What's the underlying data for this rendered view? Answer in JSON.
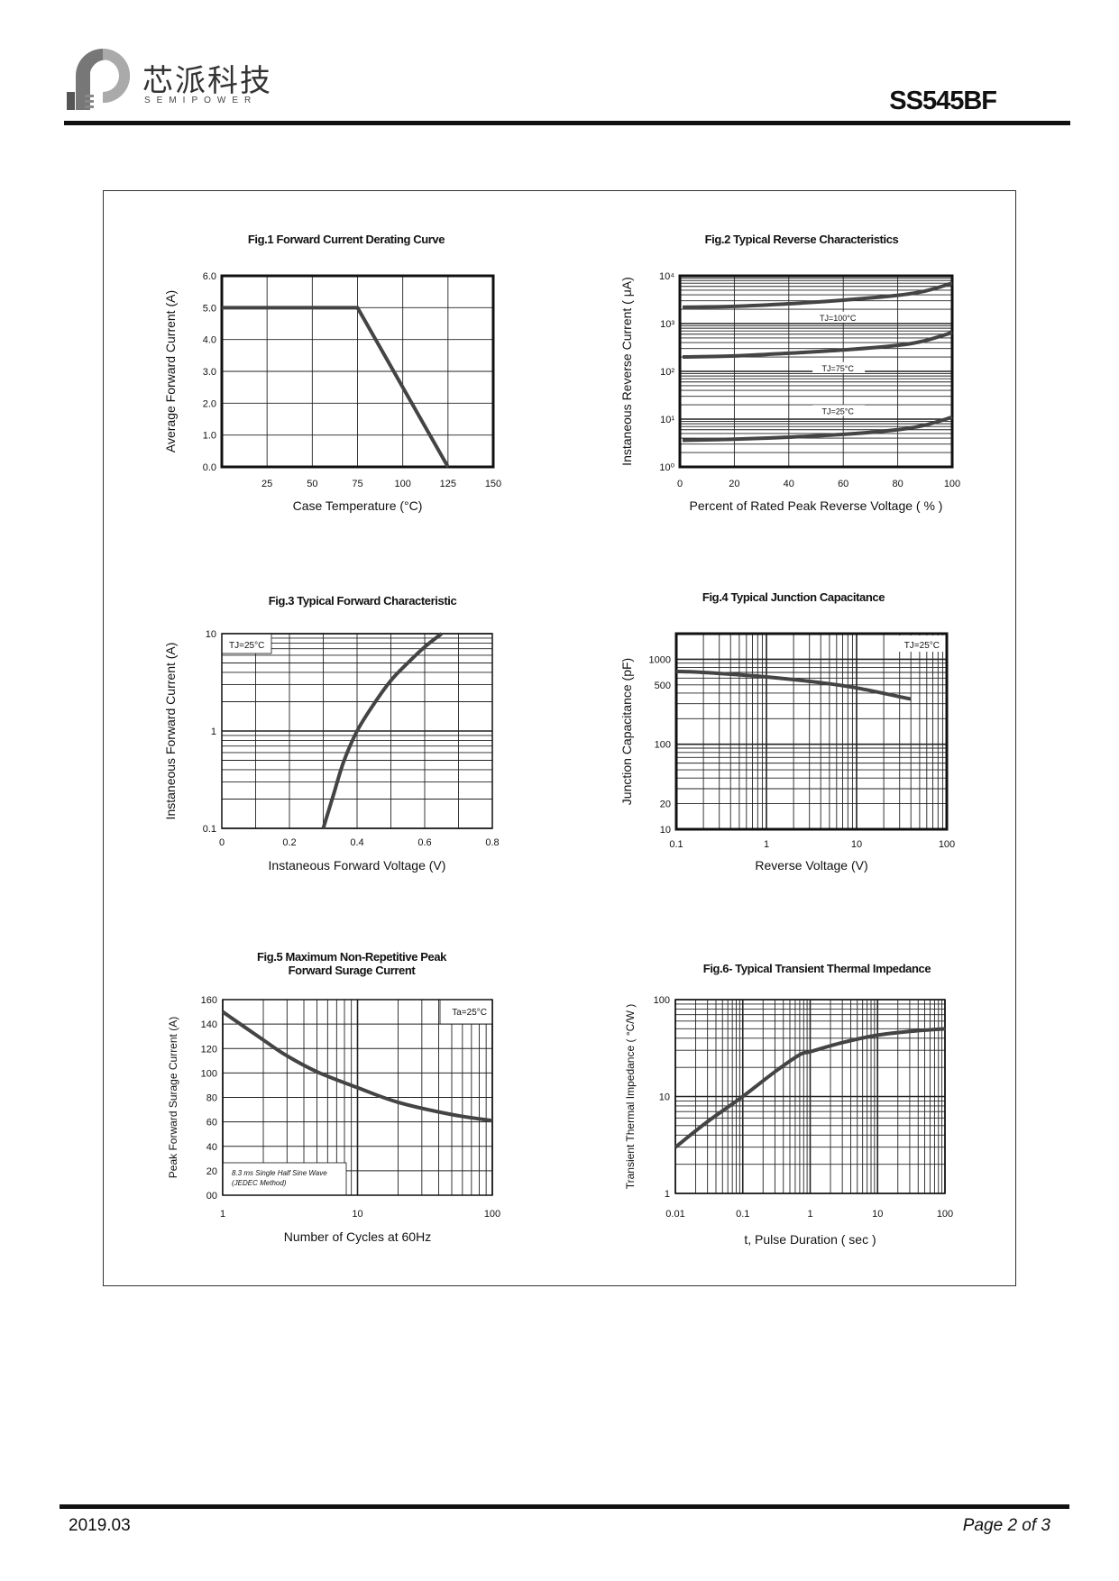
{
  "header": {
    "logo_cn": "芯派科技",
    "logo_en": "SEMIPOWER",
    "part_number": "SS545BF"
  },
  "footer": {
    "date": "2019.03",
    "page": "Page 2 of 3"
  },
  "colors": {
    "curve": "#444444",
    "grid": "#222222",
    "rule": "#111111"
  },
  "chart_data": [
    {
      "type": "line",
      "title": "Fig.1  Forward Current Derating Curve",
      "xlabel": "Case Temperature (°C)",
      "ylabel": "Average Forward Current (A)",
      "xscale": "linear",
      "yscale": "linear",
      "xlim": [
        0,
        150
      ],
      "ylim": [
        0,
        6
      ],
      "xticks": [
        {
          "v": 25,
          "label": "25"
        },
        {
          "v": 50,
          "label": "50"
        },
        {
          "v": 75,
          "label": "75"
        },
        {
          "v": 100,
          "label": "100"
        },
        {
          "v": 125,
          "label": "125"
        },
        {
          "v": 150,
          "label": "150"
        }
      ],
      "yticks": [
        {
          "v": 0,
          "label": "0.0"
        },
        {
          "v": 1,
          "label": "1.0"
        },
        {
          "v": 2,
          "label": "2.0"
        },
        {
          "v": 3,
          "label": "3.0"
        },
        {
          "v": 4,
          "label": "4.0"
        },
        {
          "v": 5,
          "label": "5.0"
        },
        {
          "v": 6,
          "label": "6.0"
        }
      ],
      "grid": true,
      "series": [
        {
          "points": [
            [
              0,
              5
            ],
            [
              75,
              5
            ],
            [
              125,
              0
            ]
          ]
        }
      ],
      "annotations": []
    },
    {
      "type": "line",
      "title": "Fig.2  Typical Reverse Characteristics",
      "xlabel": "Percent of Rated Peak Reverse Voltage ( % )",
      "ylabel": "Instaneous Reverse Current ( μA)",
      "xscale": "linear",
      "yscale": "log",
      "xlim": [
        0,
        100
      ],
      "ylim": [
        1,
        10000
      ],
      "xticks": [
        {
          "v": 0,
          "label": "0"
        },
        {
          "v": 20,
          "label": "20"
        },
        {
          "v": 40,
          "label": "40"
        },
        {
          "v": 60,
          "label": "60"
        },
        {
          "v": 80,
          "label": "80"
        },
        {
          "v": 100,
          "label": "100"
        }
      ],
      "yticks": [
        {
          "v": 1,
          "label": "10⁰"
        },
        {
          "v": 10,
          "label": "10¹"
        },
        {
          "v": 100,
          "label": "10²"
        },
        {
          "v": 1000,
          "label": "10³"
        },
        {
          "v": 10000,
          "label": "10⁴"
        }
      ],
      "grid": true,
      "series": [
        {
          "points": [
            [
              1,
              2200
            ],
            [
              20,
              2300
            ],
            [
              40,
              2600
            ],
            [
              60,
              3100
            ],
            [
              80,
              3900
            ],
            [
              90,
              4800
            ],
            [
              100,
              7000
            ]
          ]
        },
        {
          "points": [
            [
              1,
              200
            ],
            [
              20,
              210
            ],
            [
              40,
              240
            ],
            [
              60,
              280
            ],
            [
              80,
              350
            ],
            [
              90,
              440
            ],
            [
              100,
              650
            ]
          ]
        },
        {
          "points": [
            [
              1,
              3.6
            ],
            [
              20,
              3.8
            ],
            [
              40,
              4.2
            ],
            [
              60,
              4.8
            ],
            [
              80,
              6
            ],
            [
              90,
              7.5
            ],
            [
              100,
              11
            ]
          ]
        }
      ],
      "annotations": [
        "TJ=100°C",
        "TJ=75°C",
        "TJ=25°C"
      ]
    },
    {
      "type": "line",
      "title": "Fig.3  Typical Forward Characteristic",
      "xlabel": "Instaneous Forward Voltage (V)",
      "ylabel": "Instaneous Forward Current  (A)",
      "xscale": "linear",
      "yscale": "log",
      "xlim": [
        0,
        0.8
      ],
      "ylim": [
        0.1,
        10
      ],
      "xticks": [
        {
          "v": 0,
          "label": "0"
        },
        {
          "v": 0.2,
          "label": "0.2"
        },
        {
          "v": 0.4,
          "label": "0.4"
        },
        {
          "v": 0.6,
          "label": "0.6"
        },
        {
          "v": 0.8,
          "label": "0.8"
        }
      ],
      "yticks": [
        {
          "v": 0.1,
          "label": "0.1"
        },
        {
          "v": 1,
          "label": "1"
        },
        {
          "v": 10,
          "label": "10"
        }
      ],
      "grid": true,
      "series": [
        {
          "points": [
            [
              0.3,
              0.1
            ],
            [
              0.33,
              0.22
            ],
            [
              0.36,
              0.48
            ],
            [
              0.4,
              1.0
            ],
            [
              0.45,
              1.9
            ],
            [
              0.5,
              3.3
            ],
            [
              0.55,
              5.0
            ],
            [
              0.6,
              7.3
            ],
            [
              0.65,
              10
            ]
          ]
        }
      ],
      "annotations": [
        "TJ=25°C"
      ]
    },
    {
      "type": "line",
      "title": "Fig.4  Typical Junction Capacitance",
      "xlabel": "Reverse  Voltage (V)",
      "ylabel": "Junction Capacitance (pF)",
      "xscale": "log",
      "yscale": "log",
      "xlim": [
        0.1,
        100
      ],
      "ylim": [
        10,
        2000
      ],
      "xticks": [
        {
          "v": 0.1,
          "label": "0.1"
        },
        {
          "v": 1,
          "label": "1"
        },
        {
          "v": 10,
          "label": "10"
        },
        {
          "v": 100,
          "label": "100"
        }
      ],
      "yticks": [
        {
          "v": 10,
          "label": "10"
        },
        {
          "v": 20,
          "label": "20"
        },
        {
          "v": 100,
          "label": "100"
        },
        {
          "v": 500,
          "label": "500"
        },
        {
          "v": 1000,
          "label": "1000"
        }
      ],
      "grid": true,
      "series": [
        {
          "points": [
            [
              0.1,
              720
            ],
            [
              0.2,
              700
            ],
            [
              1,
              620
            ],
            [
              4,
              530
            ],
            [
              10,
              460
            ],
            [
              40,
              340
            ]
          ]
        }
      ],
      "annotations": [
        "TJ=25°C"
      ]
    },
    {
      "type": "line",
      "title": "Fig.5  Maximum Non-Repetitive Peak",
      "title2": "Forward Surage Current",
      "xlabel": "Number of Cycles at 60Hz",
      "ylabel": "Peak Forward Surage Current (A)",
      "xscale": "log",
      "yscale": "linear",
      "xlim": [
        1,
        100
      ],
      "ylim": [
        0,
        160
      ],
      "xticks": [
        {
          "v": 1,
          "label": "1"
        },
        {
          "v": 10,
          "label": "10"
        },
        {
          "v": 100,
          "label": "100"
        }
      ],
      "yticks": [
        {
          "v": 0,
          "label": "00"
        },
        {
          "v": 20,
          "label": "20"
        },
        {
          "v": 40,
          "label": "40"
        },
        {
          "v": 60,
          "label": "60"
        },
        {
          "v": 80,
          "label": "80"
        },
        {
          "v": 100,
          "label": "100"
        },
        {
          "v": 120,
          "label": "120"
        },
        {
          "v": 140,
          "label": "140"
        },
        {
          "v": 160,
          "label": "160"
        }
      ],
      "grid": true,
      "series": [
        {
          "points": [
            [
              1,
              150
            ],
            [
              2,
              127
            ],
            [
              3,
              114
            ],
            [
              5,
              101
            ],
            [
              10,
              88
            ],
            [
              20,
              76
            ],
            [
              50,
              66
            ],
            [
              100,
              61
            ]
          ]
        }
      ],
      "annotations": [
        "Ta=25°C",
        "8.3 ms Single Half Sine Wave",
        "(JEDEC Method)"
      ]
    },
    {
      "type": "line",
      "title": "Fig.6- Typical Transient Thermal Impedance",
      "xlabel": "t, Pulse Duration ( sec )",
      "ylabel": "Transient Thermal Impedance ( °C/W )",
      "xscale": "log",
      "yscale": "log",
      "xlim": [
        0.01,
        100
      ],
      "ylim": [
        1,
        100
      ],
      "xticks": [
        {
          "v": 0.01,
          "label": "0.01"
        },
        {
          "v": 0.1,
          "label": "0.1"
        },
        {
          "v": 1,
          "label": "1"
        },
        {
          "v": 10,
          "label": "10"
        },
        {
          "v": 100,
          "label": "100"
        }
      ],
      "yticks": [
        {
          "v": 1,
          "label": "1"
        },
        {
          "v": 10,
          "label": "10"
        },
        {
          "v": 100,
          "label": "100"
        }
      ],
      "grid": true,
      "series": [
        {
          "points": [
            [
              0.01,
              3
            ],
            [
              0.03,
              5.5
            ],
            [
              0.1,
              10
            ],
            [
              0.3,
              18
            ],
            [
              0.7,
              27
            ],
            [
              1,
              29
            ],
            [
              3,
              36
            ],
            [
              10,
              43
            ],
            [
              30,
              47
            ],
            [
              100,
              50
            ]
          ]
        }
      ],
      "annotations": []
    }
  ]
}
